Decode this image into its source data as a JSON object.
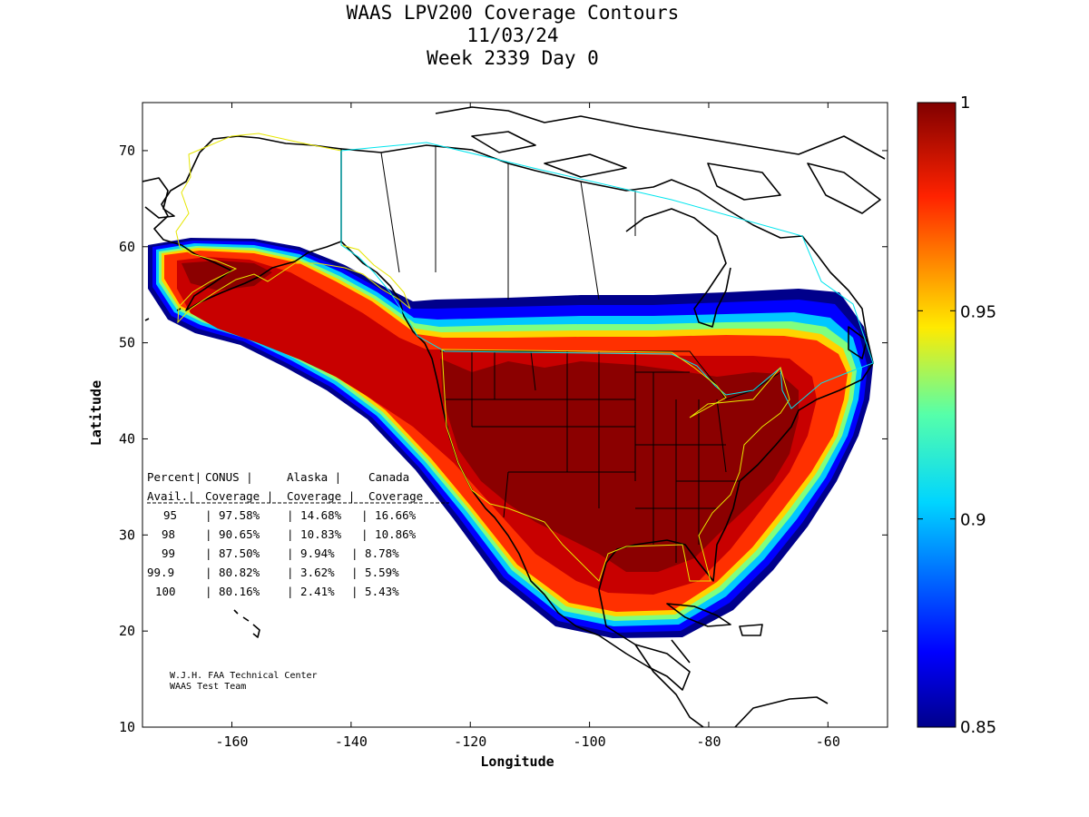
{
  "title_lines": [
    "WAAS LPV200 Coverage Contours",
    "11/03/24",
    "Week 2339 Day 0"
  ],
  "xlabel": "Longitude",
  "ylabel": "Latitude",
  "x_ticks": [
    "-160",
    "-140",
    "-120",
    "-100",
    "-80",
    "-60"
  ],
  "y_ticks": [
    "10",
    "20",
    "30",
    "40",
    "50",
    "60",
    "70"
  ],
  "colorbar": {
    "ticks": [
      "0.85",
      "0.9",
      "0.95",
      "1"
    ],
    "range": [
      0.85,
      1
    ],
    "colormap": "jet"
  },
  "table": {
    "header1": [
      "Percent",
      "CONUS",
      "Alaska",
      "Canada"
    ],
    "header2": [
      "Avail.",
      "Coverage",
      "Coverage",
      "Coverage"
    ],
    "rows": [
      [
        "95",
        "97.58%",
        "14.68%",
        "16.66%"
      ],
      [
        "98",
        "90.65%",
        "10.83%",
        "10.86%"
      ],
      [
        "99",
        "87.50%",
        "9.94%",
        "8.78%"
      ],
      [
        "99.9",
        "80.82%",
        "3.62%",
        "5.59%"
      ],
      [
        "100",
        "80.16%",
        "2.41%",
        "5.43%"
      ]
    ]
  },
  "credits": [
    "W.J.H. FAA Technical Center",
    "WAAS Test Team"
  ],
  "map": {
    "lon_range": [
      -175,
      -50
    ],
    "lat_range": [
      10,
      75
    ],
    "service_area_colors": {
      "conus_alaska": "#e6e600",
      "canada": "#00e5ee"
    },
    "colors": {
      "coastline": "#000000",
      "full": "#8b0000",
      "edge": "#00008b"
    }
  }
}
